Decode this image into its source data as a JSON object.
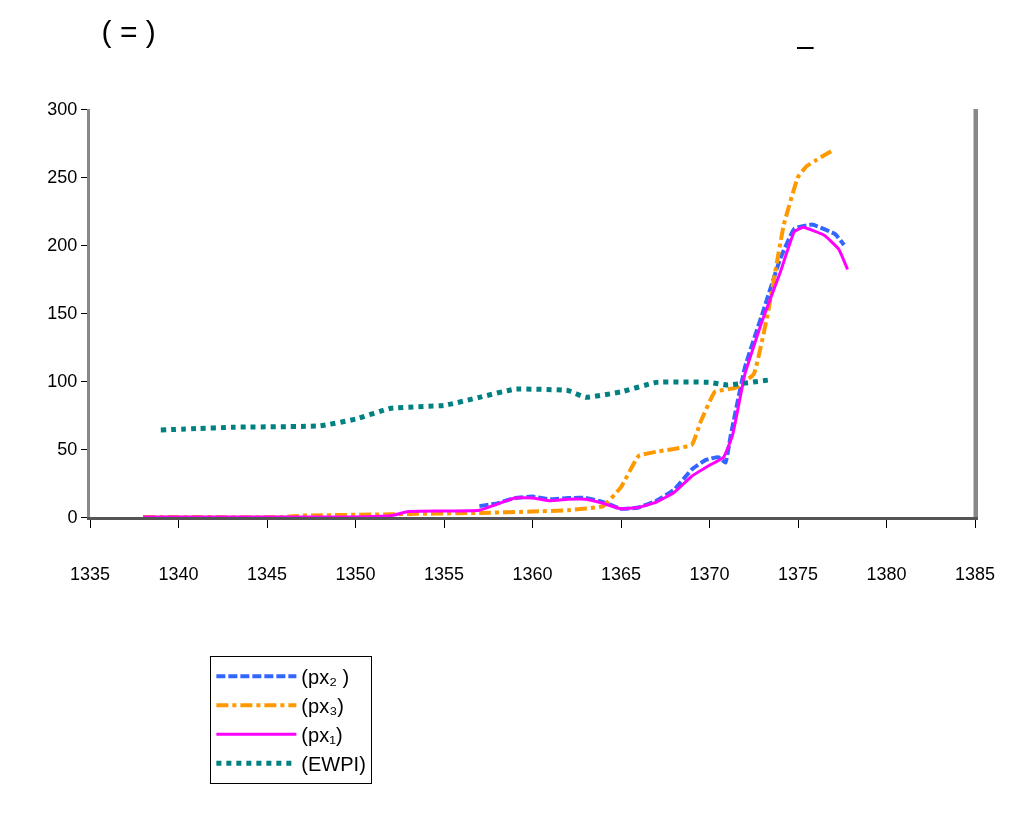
{
  "chart_data": {
    "type": "line",
    "title": "( = )",
    "annotations": [
      "–"
    ],
    "xlim": [
      1335,
      1385
    ],
    "xticks": [
      1335,
      1340,
      1345,
      1350,
      1355,
      1360,
      1365,
      1370,
      1375,
      1380,
      1385
    ],
    "ylim": [
      0,
      300
    ],
    "yticks": [
      0,
      50,
      100,
      150,
      200,
      250,
      300
    ],
    "grid": false,
    "legend": "bottom",
    "marker": "none",
    "series": [
      {
        "name": "(px₂ )",
        "color": "#3366ff",
        "line_style": "dashed",
        "x": [
          1357,
          1358,
          1359,
          1360,
          1361,
          1362,
          1363,
          1364,
          1365,
          1366,
          1367,
          1368,
          1369,
          1369.8,
          1370.5,
          1370.9,
          1371.2,
          1372,
          1373,
          1374,
          1374.8,
          1375.8,
          1377.1,
          1377.6
        ],
        "values": [
          8,
          10,
          14,
          15,
          13,
          14,
          14,
          11,
          6,
          7,
          12,
          20,
          35,
          42,
          44,
          40,
          60,
          110,
          150,
          190,
          212,
          215,
          208,
          200
        ]
      },
      {
        "name": "(px₃)",
        "color": "#ff9900",
        "line_style": "dashdot",
        "x": [
          1338,
          1346,
          1347,
          1352,
          1357,
          1360,
          1362,
          1364,
          1365,
          1366,
          1367,
          1369,
          1369.5,
          1370.3,
          1371.5,
          1372.5,
          1373.3,
          1374.2,
          1375,
          1375.5,
          1377
        ],
        "values": [
          0,
          0,
          1,
          2,
          3,
          4,
          5,
          8,
          22,
          45,
          48,
          53,
          70,
          92,
          95,
          105,
          150,
          215,
          250,
          258,
          270
        ]
      },
      {
        "name": "(px₁)",
        "color": "#ff00ff",
        "line_style": "solid",
        "x": [
          1338,
          1349,
          1352,
          1353,
          1357,
          1359,
          1360,
          1361,
          1362,
          1363,
          1364,
          1365,
          1366,
          1367,
          1368,
          1369,
          1370,
          1370.8,
          1371.3,
          1372,
          1373,
          1374,
          1374.8,
          1375.3,
          1376.5,
          1377.3,
          1377.8
        ],
        "values": [
          0,
          0,
          1,
          4,
          5,
          14,
          14,
          12,
          13,
          13,
          10,
          6,
          7,
          11,
          18,
          30,
          38,
          44,
          60,
          105,
          145,
          180,
          210,
          213,
          207,
          197,
          182
        ]
      },
      {
        "name": "(EWPI)",
        "color": "#008080",
        "line_style": "dotted",
        "x": [
          1339,
          1341,
          1343,
          1348,
          1350,
          1352,
          1355,
          1357,
          1359,
          1362,
          1363,
          1365,
          1367,
          1370,
          1371,
          1373.5
        ],
        "values": [
          64,
          65,
          66,
          67,
          72,
          80,
          82,
          88,
          94,
          93,
          88,
          92,
          99,
          99,
          97,
          101
        ]
      }
    ]
  }
}
